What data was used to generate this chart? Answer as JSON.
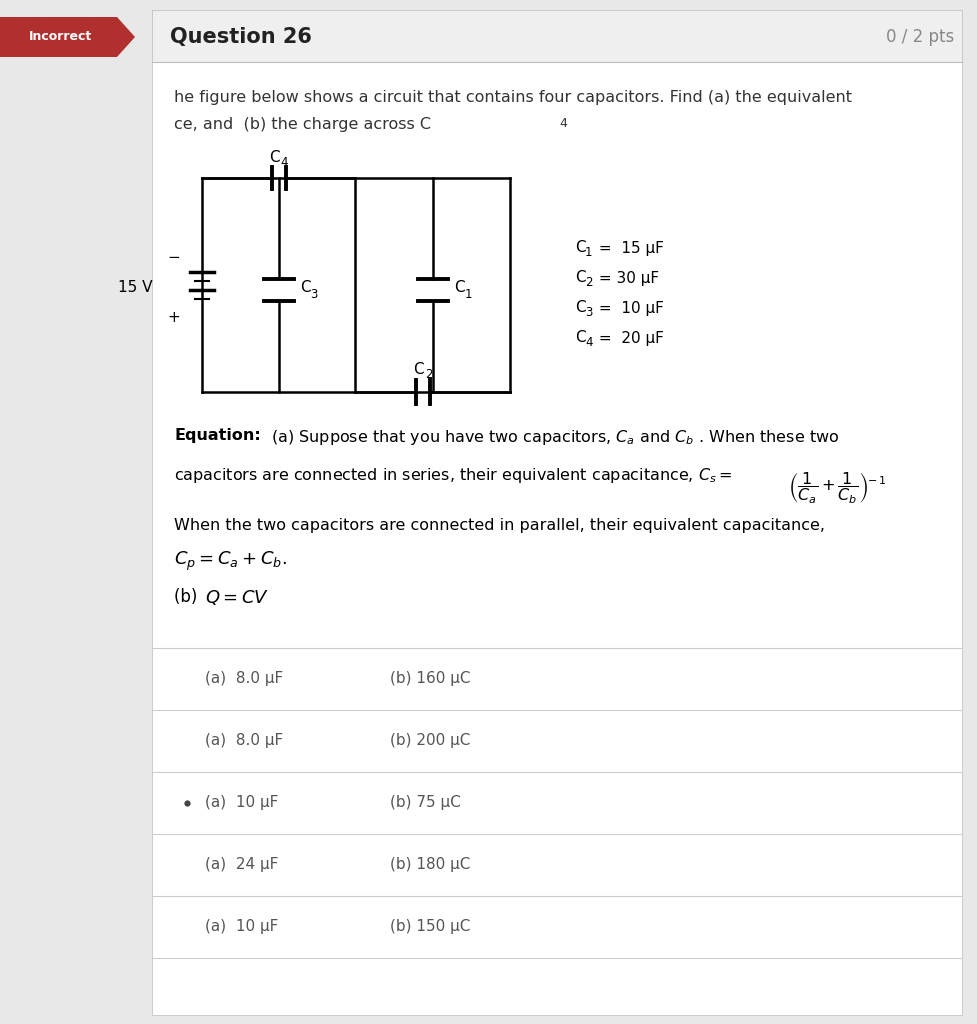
{
  "bg_color": "#e8e8e8",
  "white_bg": "#ffffff",
  "header_bg": "#efefef",
  "incorrect_bg": "#b03030",
  "incorrect_text": "Incorrect",
  "question_title": "Question 26",
  "pts_text": "0 / 2 pts",
  "prob_line1": "he figure below shows a circuit that contains four capacitors. Find (a) the equivalent",
  "prob_line2": "ce, and  (b) the charge across C",
  "voltage_label": "15 V",
  "c_values": [
    "C₁ =  15 μF",
    "C₂ = 30 μF",
    "C₃ =  10 μF",
    "C₄ =  20 μF"
  ],
  "choices": [
    {
      "a": "(a)  8.0 μF",
      "b": "(b) 160 μC",
      "selected": false
    },
    {
      "a": "(a)  8.0 μF",
      "b": "(b) 200 μC",
      "selected": false
    },
    {
      "a": "(a)  10 μF",
      "b": "(b) 75 μC",
      "selected": true
    },
    {
      "a": "(a)  24 μF",
      "b": "(b) 180 μC",
      "selected": false
    },
    {
      "a": "(a)  10 μF",
      "b": "(b) 150 μC",
      "selected": false
    }
  ]
}
